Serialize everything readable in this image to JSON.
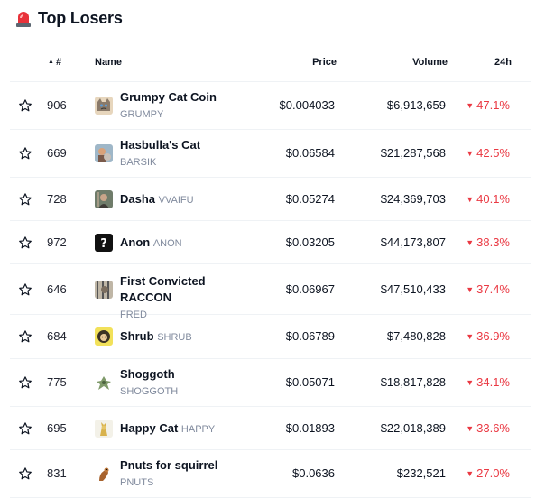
{
  "header": {
    "title": "Top Losers",
    "icon": "siren-icon"
  },
  "columns": {
    "rank": "#",
    "name": "Name",
    "price": "Price",
    "volume": "Volume",
    "change": "24h"
  },
  "colors": {
    "negative": "#ea3943",
    "muted": "#808a9d",
    "divider": "#eff2f5"
  },
  "rows": [
    {
      "rank": "906",
      "name": "Grumpy Cat Coin",
      "symbol": "GRUMPY",
      "price": "$0.004033",
      "volume": "$6,913,659",
      "change": "47.1%",
      "logo": "grumpy-cat-logo"
    },
    {
      "rank": "669",
      "name": "Hasbulla's Cat",
      "symbol": "BARSIK",
      "price": "$0.06584",
      "volume": "$21,287,568",
      "change": "42.5%",
      "logo": "barsik-logo"
    },
    {
      "rank": "728",
      "name": "Dasha",
      "symbol": "VVAIFU",
      "price": "$0.05274",
      "volume": "$24,369,703",
      "change": "40.1%",
      "logo": "dasha-logo"
    },
    {
      "rank": "972",
      "name": "Anon",
      "symbol": "ANON",
      "price": "$0.03205",
      "volume": "$44,173,807",
      "change": "38.3%",
      "logo": "anon-logo"
    },
    {
      "rank": "646",
      "name": "First Convicted RACCON",
      "symbol": "FRED",
      "price": "$0.06967",
      "volume": "$47,510,433",
      "change": "37.4%",
      "logo": "fred-logo"
    },
    {
      "rank": "684",
      "name": "Shrub",
      "symbol": "SHRUB",
      "price": "$0.06789",
      "volume": "$7,480,828",
      "change": "36.9%",
      "logo": "shrub-logo"
    },
    {
      "rank": "775",
      "name": "Shoggoth",
      "symbol": "SHOGGOTH",
      "price": "$0.05071",
      "volume": "$18,817,828",
      "change": "34.1%",
      "logo": "shoggoth-logo"
    },
    {
      "rank": "695",
      "name": "Happy Cat",
      "symbol": "HAPPY",
      "price": "$0.01893",
      "volume": "$22,018,389",
      "change": "33.6%",
      "logo": "happy-cat-logo"
    },
    {
      "rank": "831",
      "name": "Pnuts for squirrel",
      "symbol": "PNUTS",
      "price": "$0.0636",
      "volume": "$232,521",
      "change": "27.0%",
      "logo": "pnuts-logo"
    }
  ]
}
